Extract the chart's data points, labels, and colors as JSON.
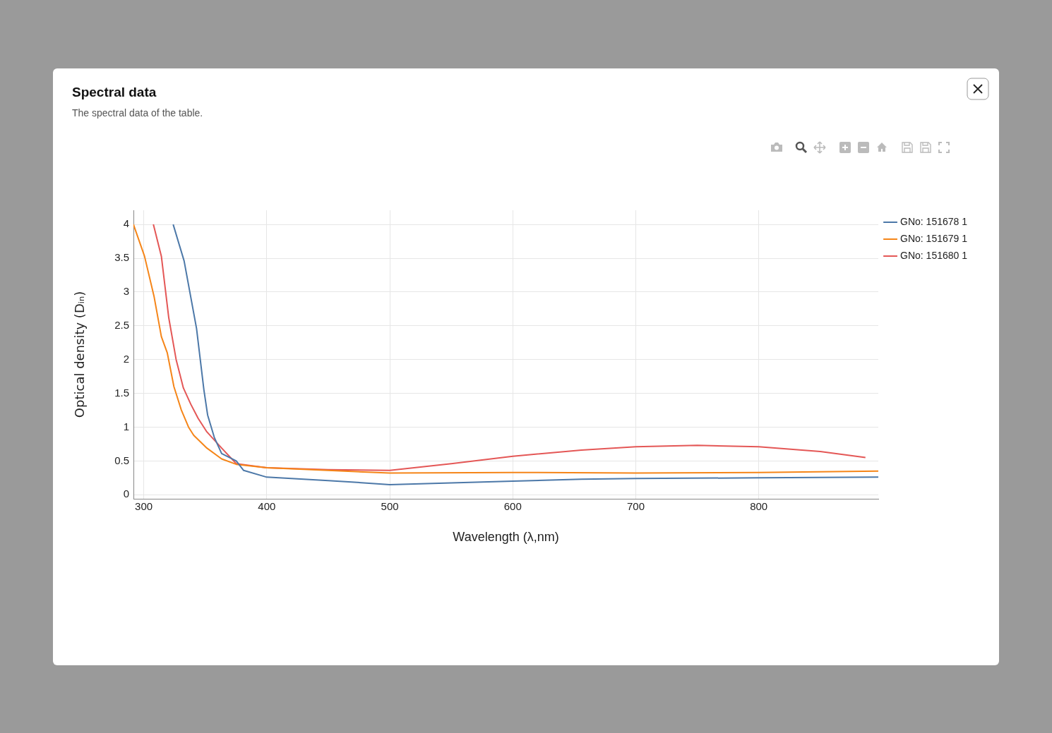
{
  "chart_data": {
    "type": "line",
    "title": "Spectral data",
    "subtitle": "The spectral data of the table.",
    "xlabel": "Wavelength (λ,nm)",
    "ylabel": "Optical density (Dᵢₙ)",
    "xlim": [
      291.6,
      897.2
    ],
    "ylim": [
      -0.06,
      4.21
    ],
    "xticks": [
      300,
      400,
      500,
      600,
      700,
      800
    ],
    "yticks": [
      0,
      0.5,
      1,
      1.5,
      2,
      2.5,
      3,
      3.5,
      4
    ],
    "grid": true,
    "legend": "top right",
    "series": [
      {
        "name": "GNo: 151678 1",
        "color": "#4c78a8",
        "x": [
          323.9,
          332.8,
          342.9,
          348.9,
          351.9,
          357.3,
          363.3,
          375.2,
          381.2,
          400,
          450,
          500,
          600,
          655.8,
          700,
          800,
          897.2
        ],
        "values": [
          4.0,
          3.46,
          2.46,
          1.55,
          1.18,
          0.85,
          0.61,
          0.5,
          0.36,
          0.26,
          0.21,
          0.15,
          0.2,
          0.23,
          0.24,
          0.25,
          0.26
        ]
      },
      {
        "name": "GNo: 151679 1",
        "color": "#f58518",
        "x": [
          291.6,
          300.6,
          308.4,
          314.3,
          319.1,
          324.5,
          330.4,
          336.4,
          340.6,
          351.3,
          363.3,
          375.2,
          400,
          450,
          500,
          600,
          700,
          800,
          897.2
        ],
        "values": [
          4.0,
          3.53,
          2.93,
          2.34,
          2.1,
          1.6,
          1.26,
          1.0,
          0.88,
          0.69,
          0.53,
          0.45,
          0.4,
          0.36,
          0.32,
          0.33,
          0.32,
          0.33,
          0.35
        ]
      },
      {
        "name": "GNo: 151680 1",
        "color": "#e45756",
        "x": [
          307.8,
          314.3,
          320.3,
          326.3,
          332.2,
          338.2,
          344.2,
          351.3,
          363.3,
          375.2,
          400,
          450,
          500,
          550,
          600,
          655.8,
          700,
          750,
          800,
          850,
          886.7
        ],
        "values": [
          4.0,
          3.53,
          2.62,
          2.0,
          1.58,
          1.34,
          1.13,
          0.93,
          0.69,
          0.46,
          0.4,
          0.37,
          0.36,
          0.46,
          0.57,
          0.66,
          0.71,
          0.73,
          0.71,
          0.64,
          0.55
        ]
      }
    ]
  }
}
